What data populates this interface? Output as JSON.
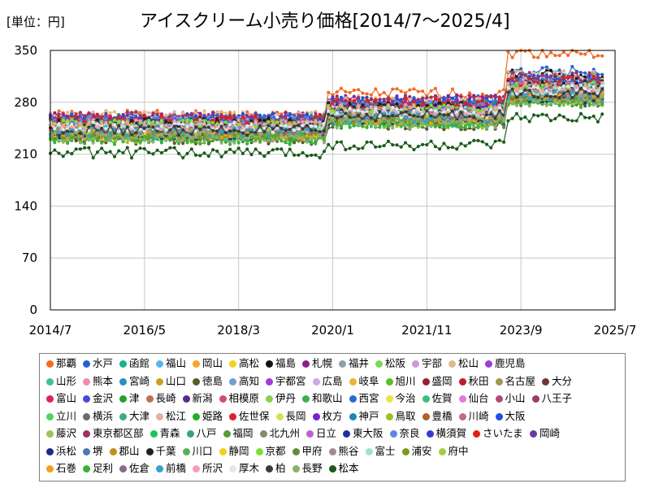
{
  "chart_data": {
    "type": "line",
    "title": "アイスクリーム小売り価格[2014/7～2025/4]",
    "unit_label": "[単位：円]",
    "ylim": [
      0,
      350
    ],
    "y_ticks": [
      0,
      70,
      140,
      210,
      280,
      350
    ],
    "x_ticks": [
      "2014/7",
      "2016/5",
      "2018/3",
      "2020/1",
      "2021/11",
      "2023/9",
      "2025/7"
    ],
    "grid": true,
    "legend_position": "bottom",
    "series": [
      {
        "name": "那覇",
        "color": "#f26a21",
        "base": 262,
        "step1": 292,
        "step2": 347
      },
      {
        "name": "水戸",
        "color": "#1f63d8",
        "base": 258,
        "step1": 282,
        "step2": 322
      },
      {
        "name": "函館",
        "color": "#1ab28c",
        "base": 248,
        "step1": 268,
        "step2": 298
      },
      {
        "name": "福山",
        "color": "#58b4f0",
        "base": 255,
        "step1": 278,
        "step2": 312
      },
      {
        "name": "岡山",
        "color": "#f5a623",
        "base": 240,
        "step1": 262,
        "step2": 300
      },
      {
        "name": "高松",
        "color": "#f2d21f",
        "base": 245,
        "step1": 270,
        "step2": 305
      },
      {
        "name": "福島",
        "color": "#111111",
        "base": 256,
        "step1": 276,
        "step2": 318
      },
      {
        "name": "札幌",
        "color": "#8a1f8f",
        "base": 260,
        "step1": 283,
        "step2": 310
      },
      {
        "name": "福井",
        "color": "#8fa0a8",
        "base": 252,
        "step1": 272,
        "step2": 300
      },
      {
        "name": "松阪",
        "color": "#7ed957",
        "base": 238,
        "step1": 258,
        "step2": 288
      },
      {
        "name": "宇部",
        "color": "#c99ad8",
        "base": 250,
        "step1": 270,
        "step2": 300
      },
      {
        "name": "松山",
        "color": "#e0b98a",
        "base": 262,
        "step1": 284,
        "step2": 316
      },
      {
        "name": "鹿児島",
        "color": "#9b3fd6",
        "base": 245,
        "step1": 265,
        "step2": 295
      },
      {
        "name": "山形",
        "color": "#3cc48a",
        "base": 236,
        "step1": 256,
        "step2": 288
      },
      {
        "name": "熊本",
        "color": "#f28ab4",
        "base": 242,
        "step1": 262,
        "step2": 292
      },
      {
        "name": "宮崎",
        "color": "#2a8fbf",
        "base": 250,
        "step1": 270,
        "step2": 300
      },
      {
        "name": "山口",
        "color": "#c9a227",
        "base": 235,
        "step1": 255,
        "step2": 285
      },
      {
        "name": "徳島",
        "color": "#5a5a2a",
        "base": 230,
        "step1": 250,
        "step2": 282
      },
      {
        "name": "高知",
        "color": "#6f9fd0",
        "base": 248,
        "step1": 268,
        "step2": 296
      },
      {
        "name": "宇都宮",
        "color": "#a23ad8",
        "base": 240,
        "step1": 262,
        "step2": 292
      },
      {
        "name": "広島",
        "color": "#c8aee0",
        "base": 252,
        "step1": 272,
        "step2": 303
      },
      {
        "name": "岐阜",
        "color": "#f0b030",
        "base": 246,
        "step1": 266,
        "step2": 298
      },
      {
        "name": "旭川",
        "color": "#5bbf2a",
        "base": 238,
        "step1": 258,
        "step2": 288
      },
      {
        "name": "盛岡",
        "color": "#9c1f2f",
        "base": 244,
        "step1": 264,
        "step2": 294
      },
      {
        "name": "秋田",
        "color": "#b8202a",
        "base": 250,
        "step1": 270,
        "step2": 302
      },
      {
        "name": "名古屋",
        "color": "#9a9a4a",
        "base": 242,
        "step1": 262,
        "step2": 290
      },
      {
        "name": "大分",
        "color": "#6a3a3a",
        "base": 236,
        "step1": 258,
        "step2": 286
      },
      {
        "name": "富山",
        "color": "#e0205a",
        "base": 248,
        "step1": 268,
        "step2": 300
      },
      {
        "name": "金沢",
        "color": "#4a4ad0",
        "base": 254,
        "step1": 274,
        "step2": 304
      },
      {
        "name": "津",
        "color": "#2aa02a",
        "base": 232,
        "step1": 252,
        "step2": 282
      },
      {
        "name": "長崎",
        "color": "#c07050",
        "base": 244,
        "step1": 264,
        "step2": 294
      },
      {
        "name": "新潟",
        "color": "#5a2a8a",
        "base": 250,
        "step1": 270,
        "step2": 300
      },
      {
        "name": "相模原",
        "color": "#d04a7a",
        "base": 246,
        "step1": 266,
        "step2": 296
      },
      {
        "name": "伊丹",
        "color": "#8ad04a",
        "base": 238,
        "step1": 258,
        "step2": 290
      },
      {
        "name": "和歌山",
        "color": "#3ab04a",
        "base": 242,
        "step1": 262,
        "step2": 292
      },
      {
        "name": "西宮",
        "color": "#2a6ad8",
        "base": 256,
        "step1": 276,
        "step2": 306
      },
      {
        "name": "今治",
        "color": "#f0e040",
        "base": 244,
        "step1": 264,
        "step2": 294
      },
      {
        "name": "佐賀",
        "color": "#3ac07a",
        "base": 234,
        "step1": 254,
        "step2": 284
      },
      {
        "name": "仙台",
        "color": "#e07ae0",
        "base": 252,
        "step1": 272,
        "step2": 302
      },
      {
        "name": "小山",
        "color": "#b04a7a",
        "base": 240,
        "step1": 260,
        "step2": 290
      },
      {
        "name": "八王子",
        "color": "#a03a6a",
        "base": 246,
        "step1": 266,
        "step2": 296
      },
      {
        "name": "立川",
        "color": "#5ad05a",
        "base": 248,
        "step1": 268,
        "step2": 298
      },
      {
        "name": "横浜",
        "color": "#6a6a6a",
        "base": 254,
        "step1": 274,
        "step2": 306
      },
      {
        "name": "大津",
        "color": "#3ab07a",
        "base": 238,
        "step1": 258,
        "step2": 288
      },
      {
        "name": "松江",
        "color": "#e0b0a0",
        "base": 244,
        "step1": 264,
        "step2": 294
      },
      {
        "name": "姫路",
        "color": "#20b020",
        "base": 236,
        "step1": 256,
        "step2": 286
      },
      {
        "name": "佐世保",
        "color": "#e02030",
        "base": 250,
        "step1": 270,
        "step2": 300
      },
      {
        "name": "長岡",
        "color": "#d8e05a",
        "base": 242,
        "step1": 262,
        "step2": 292
      },
      {
        "name": "枚方",
        "color": "#7a20d0",
        "base": 248,
        "step1": 268,
        "step2": 298
      },
      {
        "name": "神戸",
        "color": "#1a8ab0",
        "base": 256,
        "step1": 276,
        "step2": 308
      },
      {
        "name": "鳥取",
        "color": "#a0c020",
        "base": 232,
        "step1": 252,
        "step2": 282
      },
      {
        "name": "豊橋",
        "color": "#b0602a",
        "base": 240,
        "step1": 260,
        "step2": 290
      },
      {
        "name": "川崎",
        "color": "#c06a8a",
        "base": 252,
        "step1": 272,
        "step2": 302
      },
      {
        "name": "大阪",
        "color": "#2050e0",
        "base": 258,
        "step1": 280,
        "step2": 312
      },
      {
        "name": "藤沢",
        "color": "#a0c060",
        "base": 246,
        "step1": 266,
        "step2": 296
      },
      {
        "name": "東京都区部",
        "color": "#a0306a",
        "base": 260,
        "step1": 282,
        "step2": 314
      },
      {
        "name": "青森",
        "color": "#20c060",
        "base": 234,
        "step1": 254,
        "step2": 284
      },
      {
        "name": "八戸",
        "color": "#3aa08a",
        "base": 236,
        "step1": 256,
        "step2": 286
      },
      {
        "name": "福岡",
        "color": "#5a9a3a",
        "base": 244,
        "step1": 264,
        "step2": 294
      },
      {
        "name": "北九州",
        "color": "#8a8a6a",
        "base": 238,
        "step1": 258,
        "step2": 288
      },
      {
        "name": "日立",
        "color": "#c060d0",
        "base": 250,
        "step1": 270,
        "step2": 300
      },
      {
        "name": "東大阪",
        "color": "#2030a0",
        "base": 242,
        "step1": 262,
        "step2": 292
      },
      {
        "name": "奈良",
        "color": "#5a8ae0",
        "base": 254,
        "step1": 274,
        "step2": 304
      },
      {
        "name": "横須賀",
        "color": "#3a3ad0",
        "base": 248,
        "step1": 268,
        "step2": 298
      },
      {
        "name": "さいたま",
        "color": "#e02010",
        "base": 256,
        "step1": 278,
        "step2": 308
      },
      {
        "name": "岡崎",
        "color": "#6a3aa0",
        "base": 240,
        "step1": 260,
        "step2": 290
      },
      {
        "name": "浜松",
        "color": "#1a2a8a",
        "base": 236,
        "step1": 256,
        "step2": 286
      },
      {
        "name": "堺",
        "color": "#4a7ab0",
        "base": 246,
        "step1": 266,
        "step2": 296
      },
      {
        "name": "郡山",
        "color": "#c0901a",
        "base": 238,
        "step1": 258,
        "step2": 288
      },
      {
        "name": "千葉",
        "color": "#202020",
        "base": 252,
        "step1": 272,
        "step2": 302
      },
      {
        "name": "川口",
        "color": "#5ab05a",
        "base": 244,
        "step1": 264,
        "step2": 294
      },
      {
        "name": "静岡",
        "color": "#f0d01a",
        "base": 242,
        "step1": 262,
        "step2": 292
      },
      {
        "name": "京都",
        "color": "#7ae03a",
        "base": 250,
        "step1": 270,
        "step2": 300
      },
      {
        "name": "甲府",
        "color": "#6a8a3a",
        "base": 234,
        "step1": 254,
        "step2": 284
      },
      {
        "name": "熊谷",
        "color": "#a08a9a",
        "base": 240,
        "step1": 260,
        "step2": 290
      },
      {
        "name": "富士",
        "color": "#a0e0d0",
        "base": 246,
        "step1": 266,
        "step2": 296
      },
      {
        "name": "浦安",
        "color": "#7a9a1a",
        "base": 238,
        "step1": 258,
        "step2": 288
      },
      {
        "name": "府中",
        "color": "#a0d040",
        "base": 248,
        "step1": 268,
        "step2": 298
      },
      {
        "name": "石巻",
        "color": "#f0a01a",
        "base": 236,
        "step1": 256,
        "step2": 286
      },
      {
        "name": "足利",
        "color": "#3ab03a",
        "base": 230,
        "step1": 250,
        "step2": 280
      },
      {
        "name": "佐倉",
        "color": "#8a6a8a",
        "base": 244,
        "step1": 264,
        "step2": 294
      },
      {
        "name": "前橋",
        "color": "#3aa0d0",
        "base": 240,
        "step1": 260,
        "step2": 290
      },
      {
        "name": "所沢",
        "color": "#f0a0b0",
        "base": 250,
        "step1": 270,
        "step2": 300
      },
      {
        "name": "厚木",
        "color": "#e0e8f0",
        "base": 246,
        "step1": 266,
        "step2": 296
      },
      {
        "name": "柏",
        "color": "#3a3a3a",
        "base": 242,
        "step1": 262,
        "step2": 292
      },
      {
        "name": "長野",
        "color": "#8ab06a",
        "base": 232,
        "step1": 252,
        "step2": 282
      },
      {
        "name": "松本",
        "color": "#1a5a1a",
        "base": 212,
        "step1": 222,
        "step2": 258
      }
    ]
  }
}
